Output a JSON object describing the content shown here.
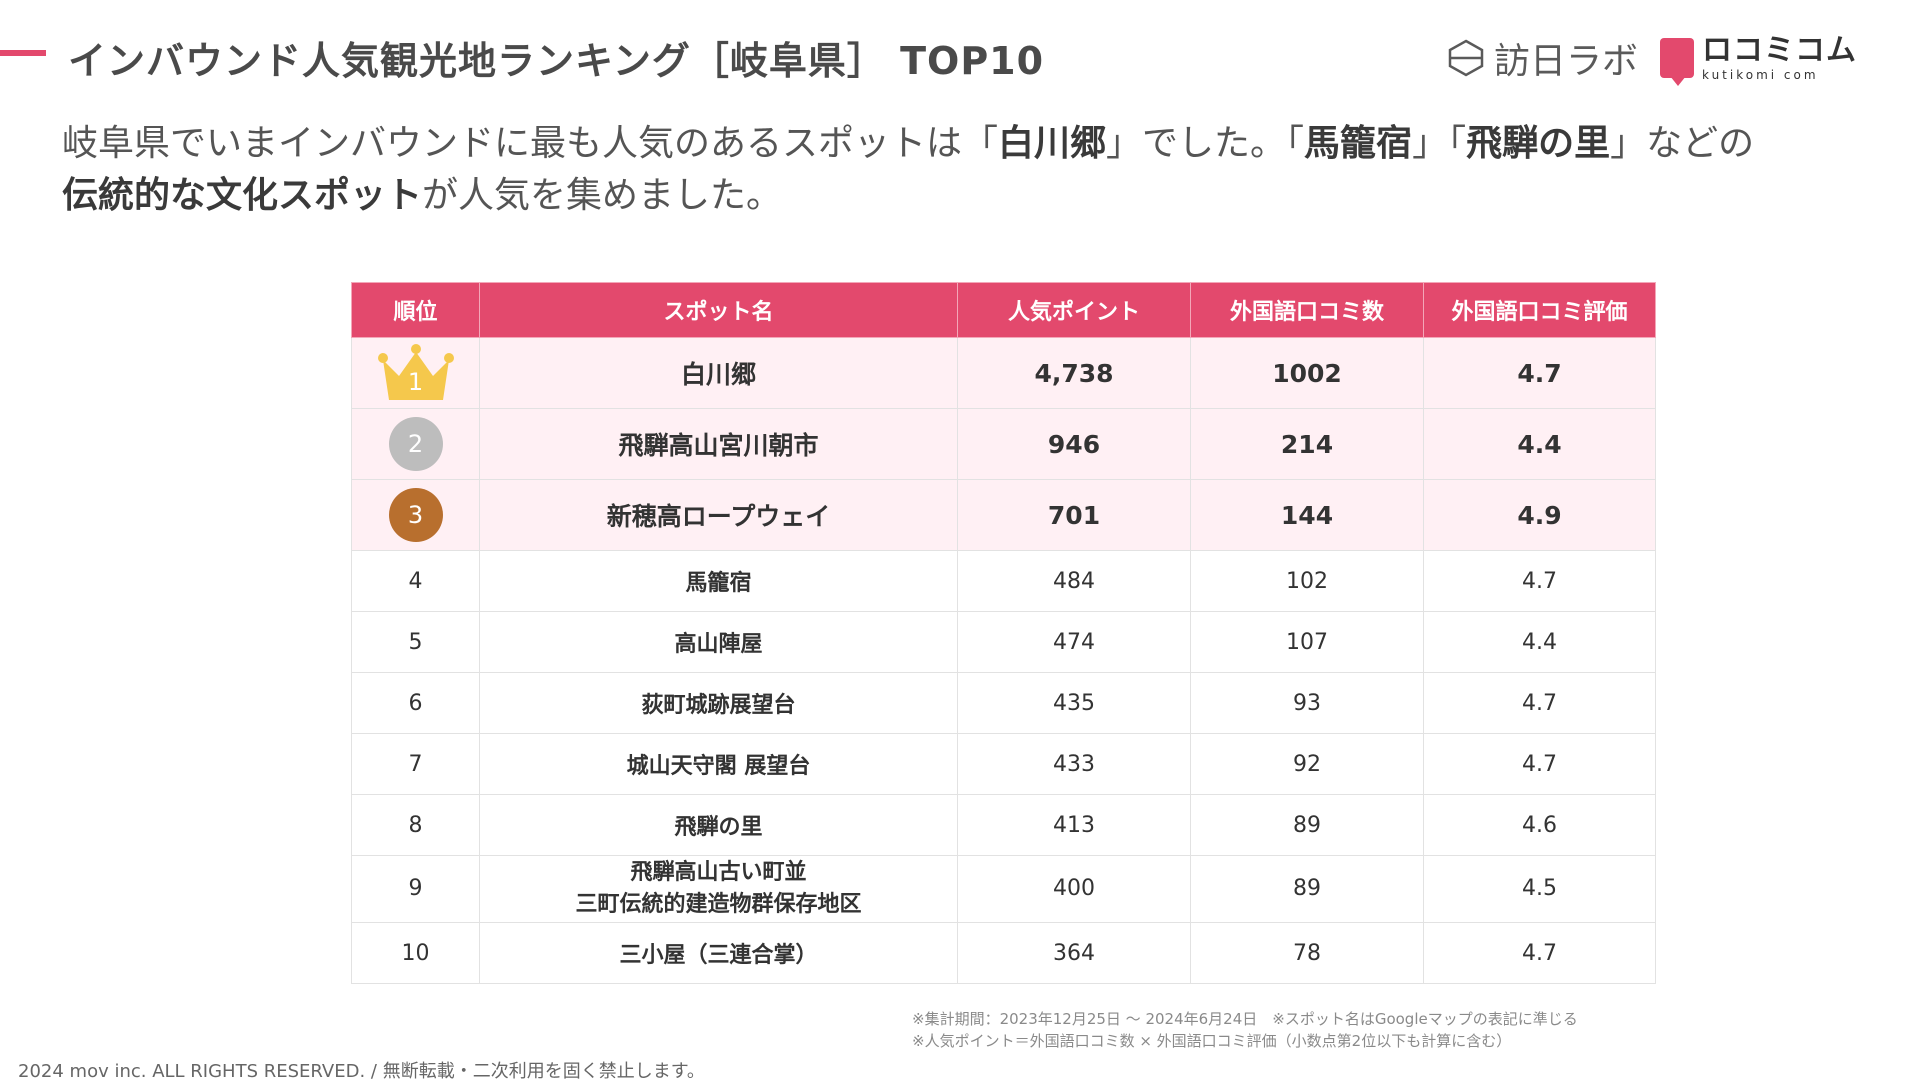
{
  "header": {
    "title": "インバウンド人気観光地ランキング［岐阜県］ TOP10",
    "logo_main": "訪日ラボ",
    "logo2_main": "ロコミコム",
    "logo2_sub": "kutikomi com"
  },
  "intro": {
    "p1": "岐阜県でいまインバウンドに最も人気のあるスポットは「",
    "b1": "白川郷",
    "p2": "」でした。「",
    "b2": "馬籠宿",
    "p3": "」「",
    "b3": "飛騨の里",
    "p4": "」などの",
    "b4": "伝統的な文化スポット",
    "p5": "が人気を集めました。"
  },
  "table": {
    "headers": [
      "順位",
      "スポット名",
      "人気ポイント",
      "外国語口コミ数",
      "外国語口コミ評価"
    ],
    "rows": [
      {
        "rank": "1",
        "name": "白川郷",
        "points": "4,738",
        "reviews": "1002",
        "rating": "4.7"
      },
      {
        "rank": "2",
        "name": "飛騨高山宮川朝市",
        "points": "946",
        "reviews": "214",
        "rating": "4.4"
      },
      {
        "rank": "3",
        "name": "新穂高ロープウェイ",
        "points": "701",
        "reviews": "144",
        "rating": "4.9"
      },
      {
        "rank": "4",
        "name": "馬籠宿",
        "points": "484",
        "reviews": "102",
        "rating": "4.7"
      },
      {
        "rank": "5",
        "name": "高山陣屋",
        "points": "474",
        "reviews": "107",
        "rating": "4.4"
      },
      {
        "rank": "6",
        "name": "荻町城跡展望台",
        "points": "435",
        "reviews": "93",
        "rating": "4.7"
      },
      {
        "rank": "7",
        "name": "城山天守閣 展望台",
        "points": "433",
        "reviews": "92",
        "rating": "4.7"
      },
      {
        "rank": "8",
        "name": "飛騨の里",
        "points": "413",
        "reviews": "89",
        "rating": "4.6"
      },
      {
        "rank": "9",
        "name_line1": "飛騨高山古い町並",
        "name_line2": "三町伝統的建造物群保存地区",
        "points": "400",
        "reviews": "89",
        "rating": "4.5"
      },
      {
        "rank": "10",
        "name": "三小屋（三連合掌）",
        "points": "364",
        "reviews": "78",
        "rating": "4.7"
      }
    ]
  },
  "notes": {
    "line1": "※集計期間：2023年12月25日 〜 2024年6月24日　※スポット名はGoogleマップの表記に準じる",
    "line2": "※人気ポイント＝外国語口コミ数 × 外国語口コミ評価（小数点第2位以下も計算に含む）"
  },
  "footer": "2024 mov inc. ALL RIGHTS RESERVED. / 無断転載・二次利用を固く禁止します。",
  "colors": {
    "accent": "#e3496d",
    "gold": "#f5c84c",
    "silver": "#bdbdbd",
    "bronze": "#b86f2e",
    "highlight_row": "#fff0f4"
  }
}
